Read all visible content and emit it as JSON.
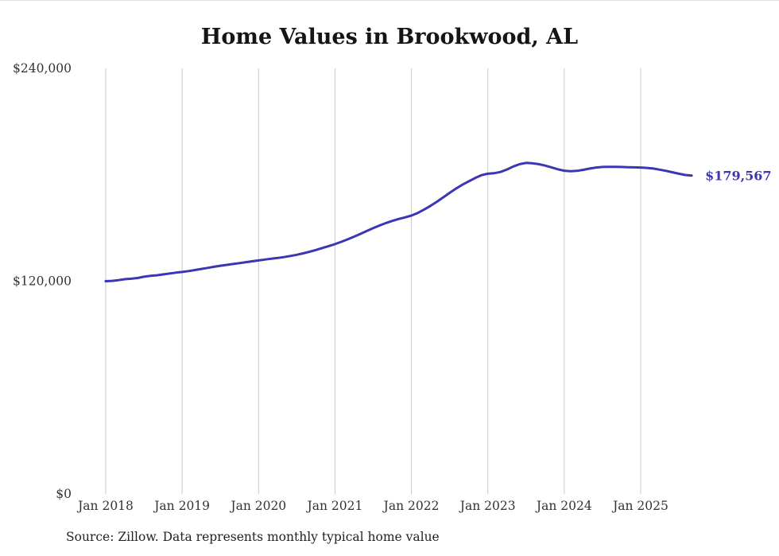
{
  "title": "Home Values in Brookwood, AL",
  "source_note": "Source: Zillow. Data represents monthly typical home value",
  "end_label": "$179,567",
  "colors": {
    "line": "#3c35b5",
    "grid": "#c9c9c9",
    "axis_text": "#333333",
    "title_text": "#151515"
  },
  "chart_data": {
    "type": "line",
    "title": "Home Values in Brookwood, AL",
    "xlabel": "",
    "ylabel": "",
    "ylim": [
      0,
      240000
    ],
    "grid": "vertical-only",
    "legend": "none",
    "frequency": "monthly",
    "start_month": "Jan 2018",
    "end_month": "Sep 2025",
    "x_tick_labels": [
      "Jan 2018",
      "Jan 2019",
      "Jan 2020",
      "Jan 2021",
      "Jan 2022",
      "Jan 2023",
      "Jan 2024",
      "Jan 2025"
    ],
    "y_ticks": [
      {
        "value": 0,
        "label": "$0"
      },
      {
        "value": 120000,
        "label": "$120,000"
      },
      {
        "value": 240000,
        "label": "$240,000"
      }
    ],
    "end_value": 179567,
    "series": [
      {
        "name": "Typical home value",
        "values": [
          120000,
          120200,
          120600,
          121100,
          121400,
          121800,
          122500,
          123000,
          123300,
          123800,
          124300,
          124800,
          125200,
          125700,
          126300,
          126900,
          127500,
          128100,
          128700,
          129200,
          129700,
          130200,
          130700,
          131200,
          131700,
          132200,
          132700,
          133100,
          133600,
          134200,
          134900,
          135700,
          136600,
          137600,
          138700,
          139800,
          140900,
          142200,
          143600,
          145100,
          146700,
          148300,
          149900,
          151400,
          152800,
          154000,
          155100,
          156000,
          157000,
          158500,
          160400,
          162500,
          164800,
          167300,
          169800,
          172200,
          174400,
          176300,
          178200,
          179800,
          180600,
          180900,
          181600,
          183000,
          184700,
          186000,
          186700,
          186500,
          186000,
          185200,
          184200,
          183100,
          182300,
          182000,
          182200,
          182800,
          183500,
          184100,
          184400,
          184500,
          184500,
          184400,
          184300,
          184200,
          184100,
          183900,
          183500,
          182900,
          182200,
          181400,
          180600,
          179900,
          179567
        ]
      }
    ]
  }
}
